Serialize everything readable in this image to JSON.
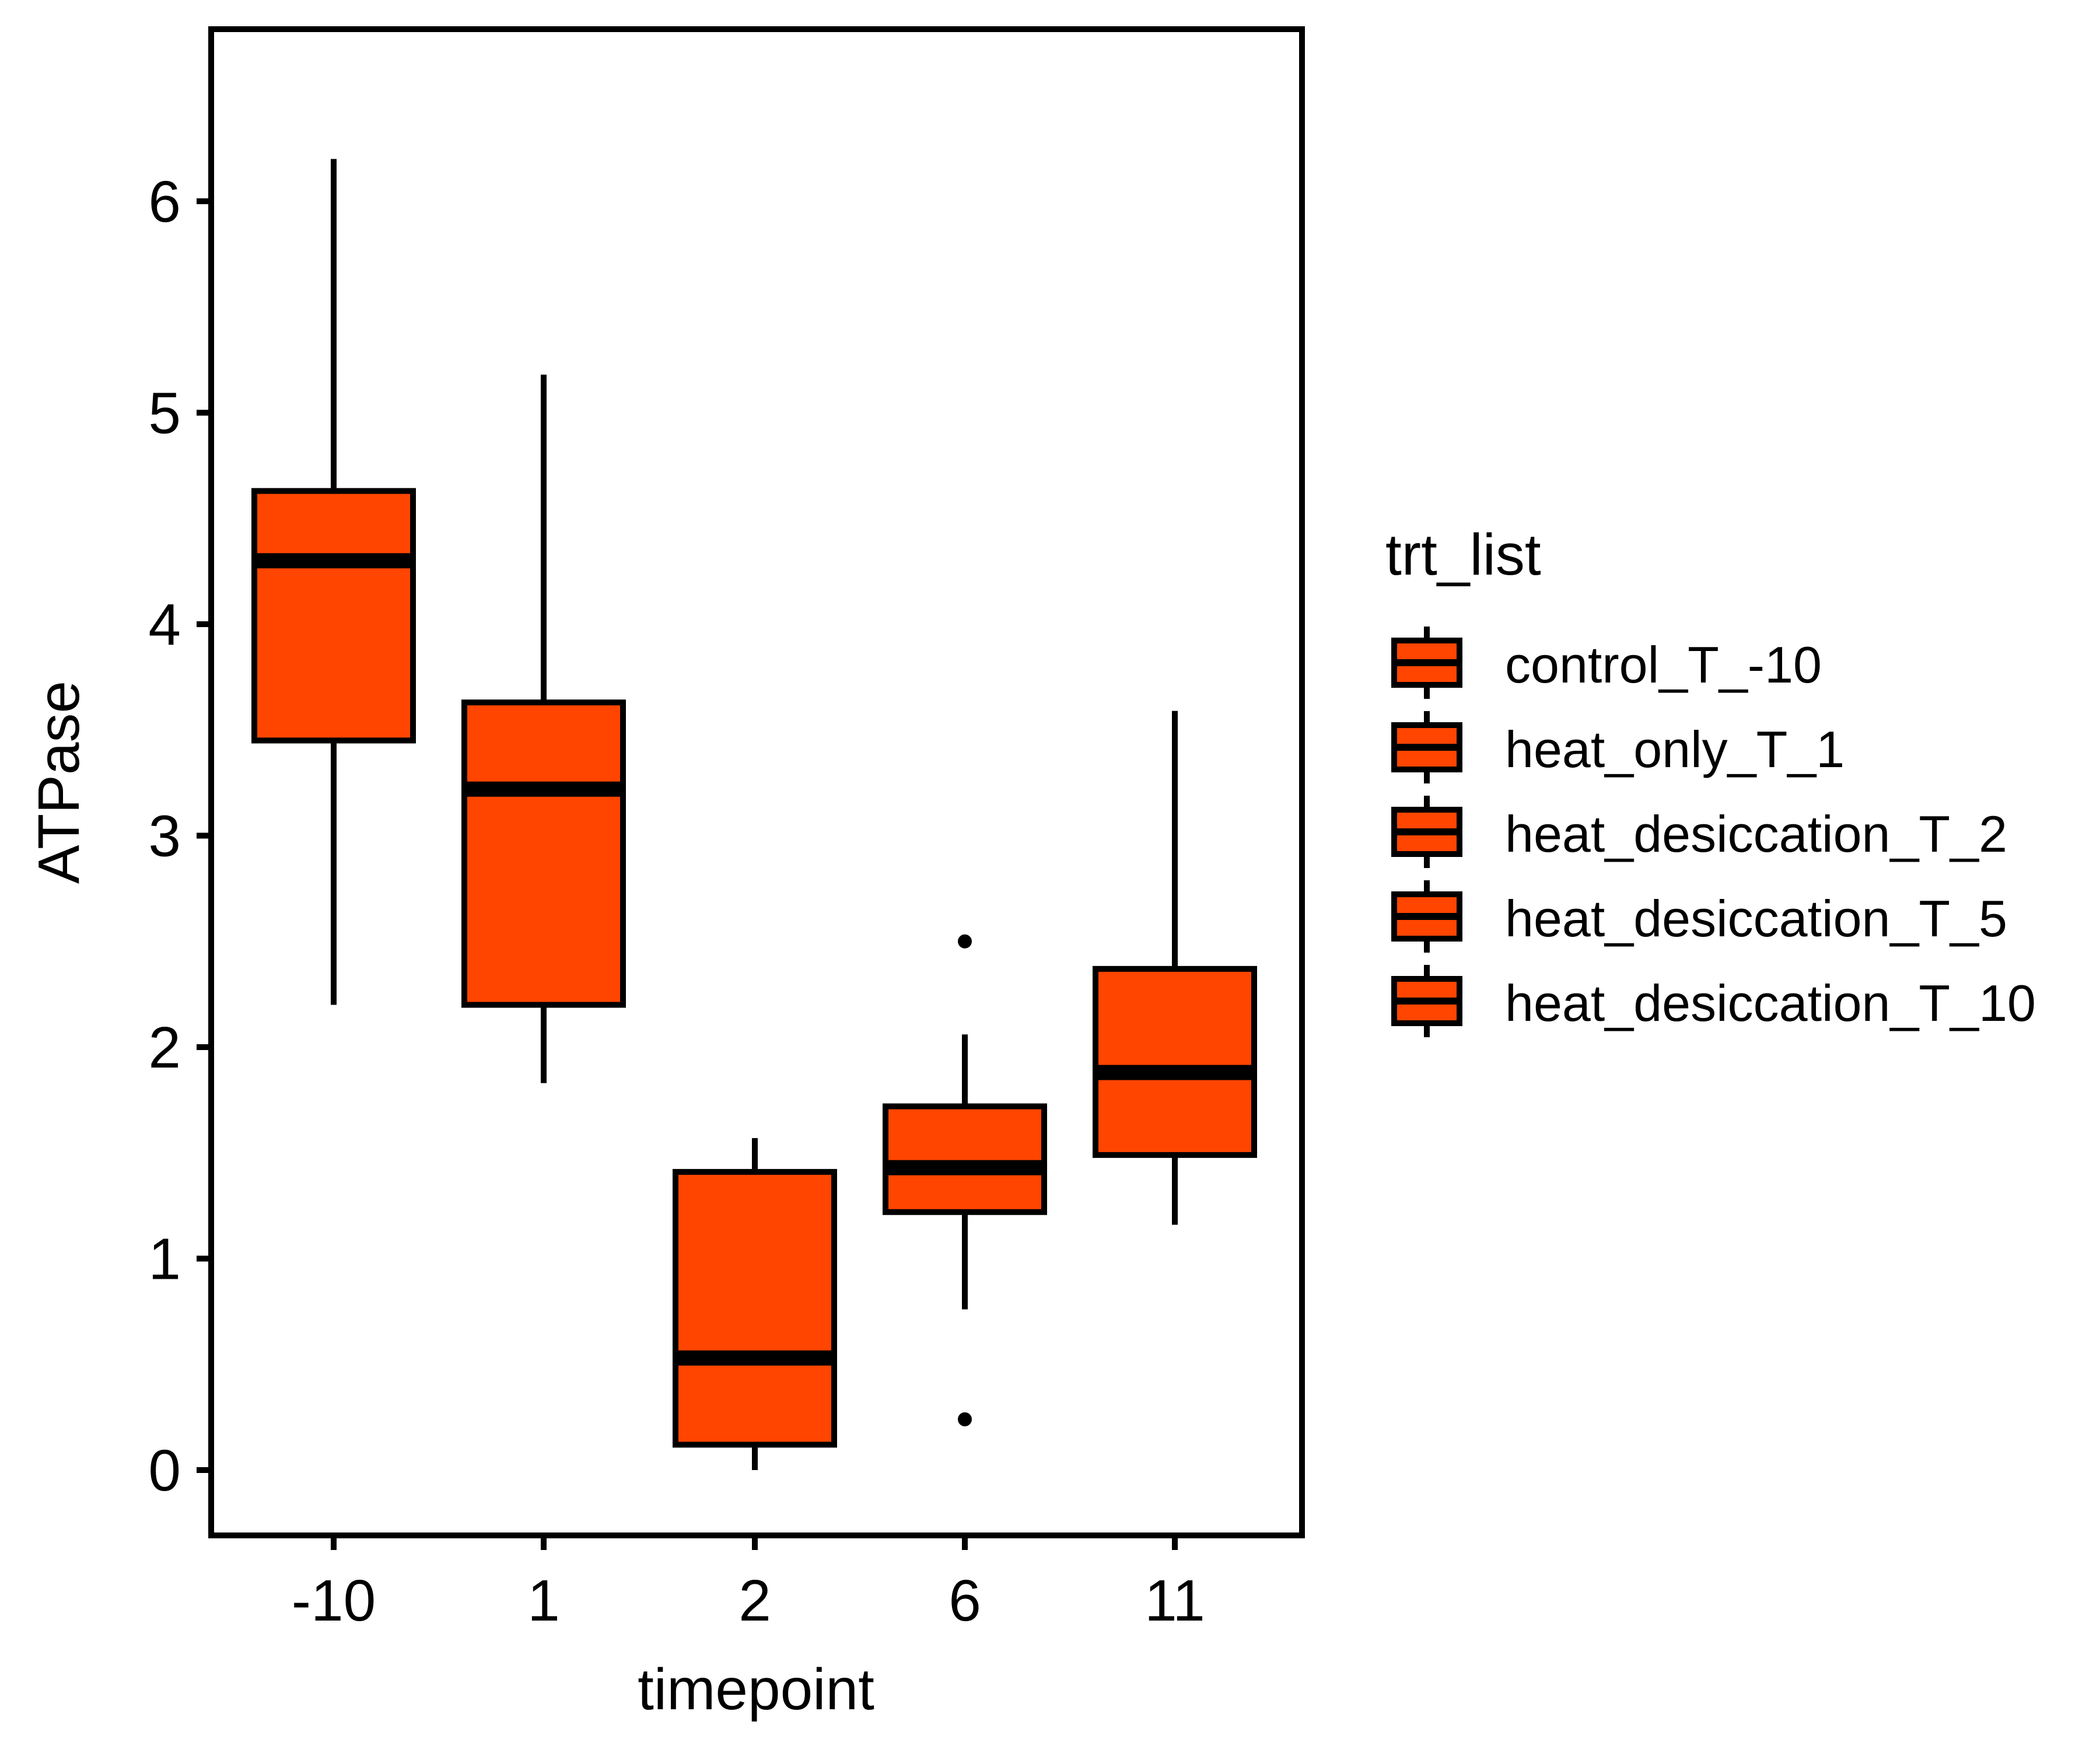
{
  "chart_data": {
    "type": "boxplot",
    "xlabel": "timepoint",
    "ylabel": "ATPase",
    "categories": [
      "-10",
      "1",
      "2",
      "6",
      "11"
    ],
    "y_ticks": [
      0,
      1,
      2,
      3,
      4,
      5,
      6
    ],
    "ylim": [
      -0.3,
      6.8
    ],
    "legend": {
      "title": "trt_list",
      "placement": "right",
      "entries": [
        "control_T_-10",
        "heat_only_T_1",
        "heat_desiccation_T_2",
        "heat_desiccation_T_5",
        "heat_desiccation_T_10"
      ]
    },
    "fill_color": "#FF4500",
    "line_color": "#000000",
    "grid": false,
    "boxes": [
      {
        "category": "-10",
        "whisker_low": 2.2,
        "q1": 3.45,
        "median": 4.3,
        "q3": 4.63,
        "whisker_high": 6.2,
        "outliers": []
      },
      {
        "category": "1",
        "whisker_low": 1.83,
        "q1": 2.2,
        "median": 3.22,
        "q3": 3.63,
        "whisker_high": 5.18,
        "outliers": []
      },
      {
        "category": "2",
        "whisker_low": 0.0,
        "q1": 0.12,
        "median": 0.53,
        "q3": 1.41,
        "whisker_high": 1.57,
        "outliers": []
      },
      {
        "category": "6",
        "whisker_low": 0.76,
        "q1": 1.22,
        "median": 1.43,
        "q3": 1.72,
        "whisker_high": 2.06,
        "outliers": [
          2.5,
          0.24
        ]
      },
      {
        "category": "11",
        "whisker_low": 1.16,
        "q1": 1.49,
        "median": 1.88,
        "q3": 2.37,
        "whisker_high": 3.59,
        "outliers": []
      }
    ]
  }
}
